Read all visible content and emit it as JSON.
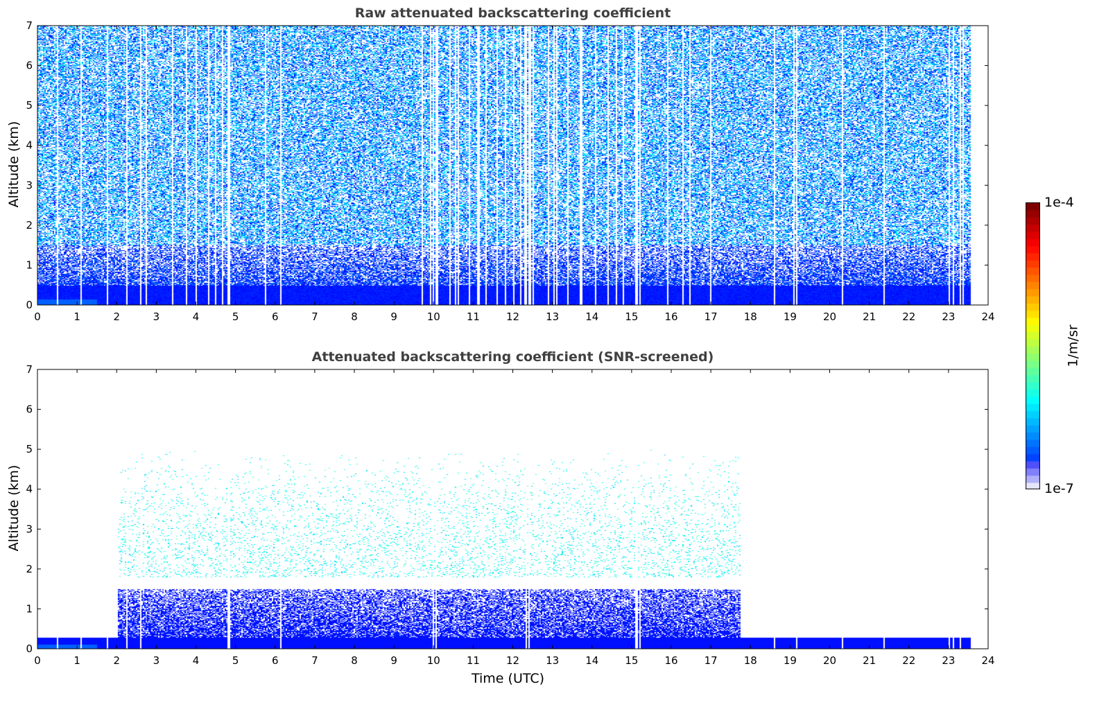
{
  "chart_data": [
    {
      "type": "heatmap",
      "title": "Raw attenuated backscattering coefficient",
      "xlabel": "",
      "ylabel": "Altitude (km)",
      "xlim": [
        0,
        24
      ],
      "ylim": [
        0,
        7
      ],
      "xticks": [
        "0",
        "1",
        "2",
        "3",
        "4",
        "5",
        "6",
        "7",
        "8",
        "9",
        "10",
        "11",
        "12",
        "13",
        "14",
        "15",
        "16",
        "17",
        "18",
        "19",
        "20",
        "21",
        "22",
        "23",
        "24"
      ],
      "yticks": [
        "0",
        "1",
        "2",
        "3",
        "4",
        "5",
        "6",
        "7"
      ],
      "data_end_time": 23.55,
      "description_layers": [
        {
          "alt_range_km": [
            0,
            0.5
          ],
          "level": "dense",
          "color_value": 3e-07
        },
        {
          "alt_range_km": [
            0.5,
            1.5
          ],
          "level": "speckled",
          "color_value": 3e-07
        },
        {
          "alt_range_km": [
            1.5,
            7
          ],
          "level": "noisy",
          "color_value": 1e-06
        }
      ],
      "gap_times": [
        0.5,
        1.1,
        1.75,
        2.25,
        2.6,
        2.75,
        3.4,
        3.75,
        4.0,
        4.3,
        4.5,
        4.65,
        4.8,
        4.83,
        5.75,
        6.15,
        9.7,
        9.9,
        10.0,
        10.05,
        10.1,
        10.4,
        10.55,
        10.6,
        10.9,
        11.1,
        11.15,
        11.3,
        11.6,
        11.8,
        12.0,
        12.2,
        12.3,
        12.35,
        12.4,
        12.45,
        12.5,
        12.9,
        13.05,
        13.1,
        13.4,
        13.7,
        13.75,
        14.1,
        14.4,
        14.6,
        14.8,
        15.1,
        15.15,
        15.2,
        15.9,
        16.3,
        16.45,
        17.0,
        18.6,
        19.1,
        19.15,
        20.3,
        21.35,
        23.0,
        23.1,
        23.3,
        23.35
      ]
    },
    {
      "type": "heatmap",
      "title": "Attenuated backscattering coefficient (SNR-screened)",
      "xlabel": "Time (UTC)",
      "ylabel": "Altitude (km)",
      "xlim": [
        0,
        24
      ],
      "ylim": [
        0,
        7
      ],
      "xticks": [
        "0",
        "1",
        "2",
        "3",
        "4",
        "5",
        "6",
        "7",
        "8",
        "9",
        "10",
        "11",
        "12",
        "13",
        "14",
        "15",
        "16",
        "17",
        "18",
        "19",
        "20",
        "21",
        "22",
        "23",
        "24"
      ],
      "yticks": [
        "0",
        "1",
        "2",
        "3",
        "4",
        "5",
        "6",
        "7"
      ],
      "data_end_time": 23.55,
      "surface_layer_top_km": 0.28,
      "boundary_layer": {
        "time_range": [
          2.0,
          17.75
        ],
        "top_km": 1.5
      },
      "aerosol_speckle": {
        "time_range": [
          2.0,
          17.75
        ],
        "alt_range_km": [
          1.8,
          5.0
        ]
      },
      "gap_times": [
        0.5,
        1.1,
        1.75,
        2.25,
        2.6,
        4.8,
        4.83,
        6.15,
        10.0,
        10.05,
        12.35,
        12.4,
        15.1,
        15.15,
        15.2,
        18.6,
        19.15,
        20.3,
        21.35,
        23.0,
        23.1,
        23.3
      ]
    }
  ],
  "colorbar": {
    "label": "1/m/sr",
    "max_label": "1e-4",
    "min_label": "1e-7",
    "scale": "log",
    "colormap": "jet"
  }
}
